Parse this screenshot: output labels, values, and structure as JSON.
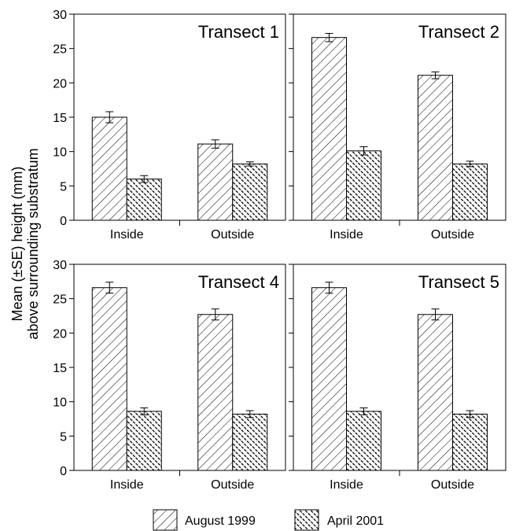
{
  "chart_data": {
    "type": "bar",
    "ylabel_line1": "Mean (±SE) height (mm)",
    "ylabel_line2": "above surrounding substratum",
    "legend_placement": "bottom",
    "series_names": [
      "August 1999",
      "April 2001"
    ],
    "yticks": [
      0,
      5,
      10,
      15,
      20,
      25,
      30
    ],
    "ylim": [
      0,
      30
    ],
    "panels": [
      {
        "title": "Transect 1",
        "categories": [
          "Inside",
          "Outside"
        ],
        "series": [
          {
            "name": "August 1999",
            "values": [
              15.0,
              11.1
            ],
            "errors": [
              0.8,
              0.6
            ]
          },
          {
            "name": "April 2001",
            "values": [
              6.0,
              8.2
            ],
            "errors": [
              0.5,
              0.3
            ]
          }
        ]
      },
      {
        "title": "Transect 2",
        "categories": [
          "Inside",
          "Outside"
        ],
        "series": [
          {
            "name": "August 1999",
            "values": [
              26.6,
              21.1
            ],
            "errors": [
              0.6,
              0.5
            ]
          },
          {
            "name": "April 2001",
            "values": [
              10.1,
              8.2
            ],
            "errors": [
              0.6,
              0.4
            ]
          }
        ]
      },
      {
        "title": "Transect 4",
        "categories": [
          "Inside",
          "Outside"
        ],
        "series": [
          {
            "name": "August 1999",
            "values": [
              26.6,
              22.7
            ],
            "errors": [
              0.8,
              0.8
            ]
          },
          {
            "name": "April 2001",
            "values": [
              8.6,
              8.2
            ],
            "errors": [
              0.5,
              0.5
            ]
          }
        ]
      },
      {
        "title": "Transect 5",
        "categories": [
          "Inside",
          "Outside"
        ],
        "series": [
          {
            "name": "August 1999",
            "values": [
              26.6,
              22.7
            ],
            "errors": [
              0.8,
              0.8
            ]
          },
          {
            "name": "April 2001",
            "values": [
              8.6,
              8.2
            ],
            "errors": [
              0.5,
              0.5
            ]
          }
        ]
      }
    ]
  }
}
